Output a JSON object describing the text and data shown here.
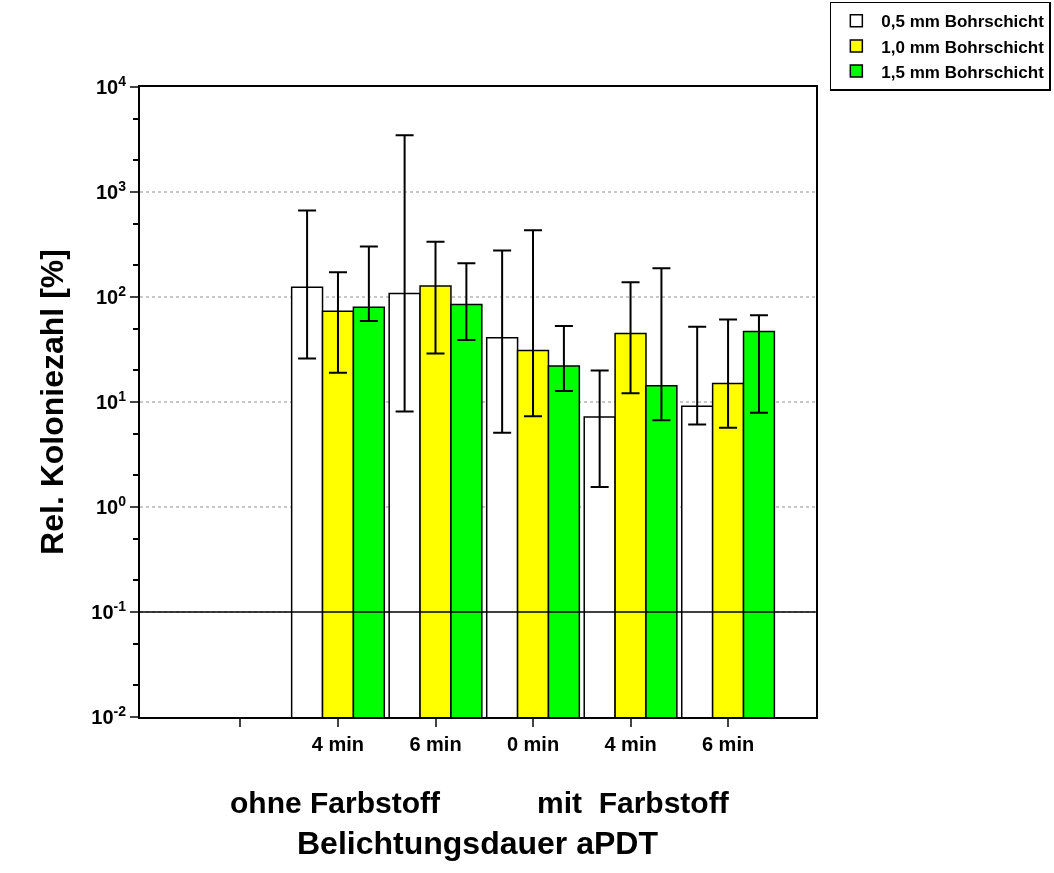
{
  "chart_data": {
    "type": "bar",
    "xlabel": "Belichtungsdauer aPDT",
    "ylabel": "Rel. Koloniezahl [%]",
    "categories": [
      null,
      "4 min",
      "6 min",
      "0 min",
      "4 min",
      "6 min"
    ],
    "series": [
      {
        "name": "0,5 mm Bohrschicht",
        "color": "#ffffff",
        "values": [
          null,
          124,
          108,
          41,
          7.2,
          9.1
        ],
        "errors": [
          null,
          [
            26,
            667
          ],
          [
            8.1,
            3480
          ],
          [
            5.1,
            277
          ],
          [
            1.55,
            20
          ],
          [
            6.1,
            52
          ]
        ]
      },
      {
        "name": "1,0 mm Bohrschicht",
        "color": "#ffff00",
        "values": [
          null,
          73,
          127,
          31,
          45,
          15
        ],
        "errors": [
          null,
          [
            19,
            172
          ],
          [
            29,
            336
          ],
          [
            7.3,
            433
          ],
          [
            12.1,
            138
          ],
          [
            5.7,
            61
          ]
        ]
      },
      {
        "name": "1,5 mm Bohrschicht",
        "color": "#00ff00",
        "values": [
          null,
          80,
          85,
          22,
          14.3,
          47
        ],
        "errors": [
          null,
          [
            59,
            303
          ],
          [
            39,
            210
          ],
          [
            12.7,
            53
          ],
          [
            6.7,
            188
          ],
          [
            7.9,
            67
          ]
        ]
      }
    ],
    "log": "y",
    "ylim": [
      0.01,
      10000
    ],
    "yticks": [
      {
        "value": 0.01,
        "label": "10$^{-2}$"
      },
      {
        "value": 0.1,
        "label": "10$^{-1}$"
      },
      {
        "value": 1,
        "label": "10$^{0}$"
      },
      {
        "value": 10,
        "label": "10$^{1}$"
      },
      {
        "value": 100,
        "label": "10$^{2}$"
      },
      {
        "value": 1000,
        "label": "10$^{3}$"
      },
      {
        "value": 10000,
        "label": "10$^{4}$"
      }
    ],
    "grid": "y",
    "legend": "top right",
    "ref_lines": [
      {
        "axis": "y",
        "value": 0.1,
        "color": "#000000",
        "line_style": "solid"
      }
    ],
    "annotations": [
      "ohne Farbstoff",
      "mit  Farbstoff"
    ]
  }
}
